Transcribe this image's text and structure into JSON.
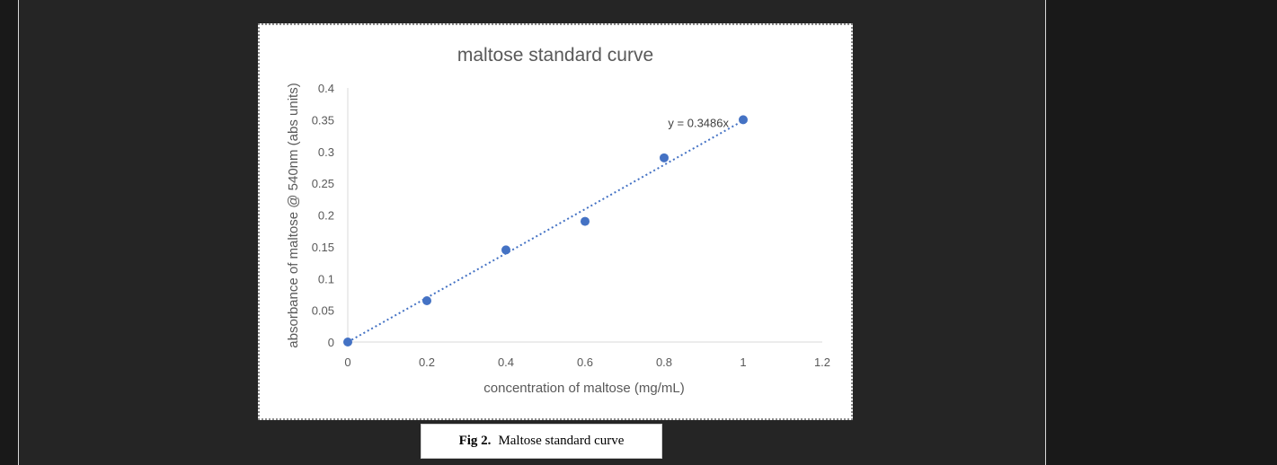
{
  "figure": {
    "caption_number": "Fig 2.",
    "caption_text": "Maltose standard curve"
  },
  "colors": {
    "page_background": "#191919",
    "panel_background": "#252525",
    "marker": "#4472c4",
    "trendline": "#4472c4",
    "axis": "#d9d9d9",
    "text": "#595959"
  },
  "chart_data": {
    "type": "scatter",
    "title": "maltose standard curve",
    "xlabel": "concentration of maltose (mg/mL)",
    "ylabel": "absorbance of maltose @ 540nm (abs units)",
    "xlim": [
      0,
      1.2
    ],
    "ylim": [
      0,
      0.4
    ],
    "x_ticks": [
      "0",
      "0.2",
      "0.4",
      "0.6",
      "0.8",
      "1",
      "1.2"
    ],
    "y_ticks": [
      "0",
      "0.05",
      "0.1",
      "0.15",
      "0.2",
      "0.25",
      "0.3",
      "0.35",
      "0.4"
    ],
    "grid": false,
    "legend": "none",
    "series": [
      {
        "x": [
          0,
          0.2,
          0.4,
          0.6,
          0.8,
          1.0
        ],
        "y": [
          0,
          0.065,
          0.145,
          0.19,
          0.29,
          0.35
        ]
      }
    ],
    "trendline": {
      "type": "linear",
      "slope": 0.3486,
      "intercept": 0,
      "label": "y = 0.3486x",
      "style": "dotted"
    }
  }
}
